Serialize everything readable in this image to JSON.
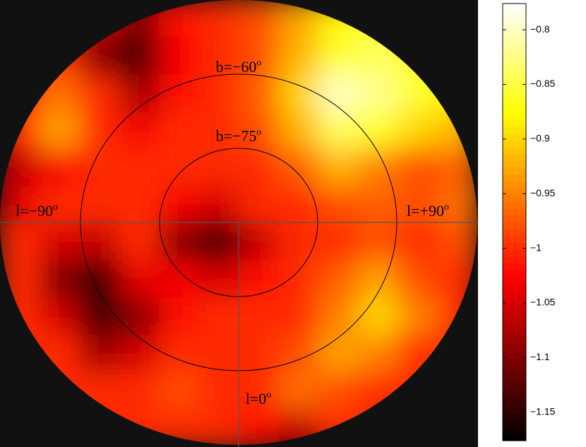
{
  "chart_data": {
    "type": "heatmap",
    "colormap": "hot",
    "values": [
      [
        -1.0,
        -1.0,
        -1.05,
        -1.1,
        -1.02,
        -1.0,
        -0.98,
        -0.93,
        -0.88,
        -0.86,
        -0.87,
        -0.88
      ],
      [
        -1.0,
        -1.0,
        -1.1,
        -1.14,
        -1.03,
        -1.0,
        -0.98,
        -0.92,
        -0.86,
        -0.84,
        -0.86,
        -0.88
      ],
      [
        -1.0,
        -0.96,
        -1.0,
        -1.08,
        -1.02,
        -1.0,
        -0.97,
        -0.9,
        -0.8,
        -0.82,
        -0.86,
        -0.88
      ],
      [
        -1.0,
        -0.93,
        -1.0,
        -1.03,
        -1.0,
        -1.0,
        -0.98,
        -0.92,
        -0.84,
        -0.86,
        -0.9,
        -0.92
      ],
      [
        -1.06,
        -1.03,
        -1.0,
        -1.0,
        -1.0,
        -1.0,
        -1.0,
        -0.97,
        -0.92,
        -0.95,
        -0.98,
        -0.97
      ],
      [
        -1.04,
        -1.0,
        -1.0,
        -1.0,
        -1.03,
        -1.05,
        -1.0,
        -1.0,
        -0.98,
        -0.97,
        -0.98,
        -0.96
      ],
      [
        -1.0,
        -1.05,
        -1.06,
        -1.0,
        -1.1,
        -1.16,
        -1.06,
        -1.0,
        -1.0,
        -0.98,
        -1.0,
        -0.98
      ],
      [
        -1.0,
        -1.1,
        -1.15,
        -1.04,
        -1.03,
        -1.05,
        -1.02,
        -1.0,
        -0.97,
        -0.93,
        -0.98,
        -1.0
      ],
      [
        -1.0,
        -1.05,
        -1.14,
        -1.1,
        -1.02,
        -1.0,
        -1.0,
        -1.0,
        -0.95,
        -0.9,
        -0.95,
        -1.0
      ],
      [
        -1.0,
        -1.0,
        -1.08,
        -1.05,
        -1.0,
        -1.0,
        -1.0,
        -0.98,
        -0.93,
        -0.95,
        -1.0,
        -1.0
      ],
      [
        -1.0,
        -1.0,
        -1.0,
        -1.0,
        -0.98,
        -1.0,
        -1.0,
        -0.96,
        -0.98,
        -1.0,
        -1.0,
        -1.0
      ],
      [
        -1.0,
        -1.0,
        -1.0,
        -1.0,
        -1.0,
        -1.0,
        -1.02,
        -1.06,
        -1.0,
        -1.0,
        -1.0,
        -1.0
      ]
    ],
    "clim": [
      -1.176,
      -0.776
    ],
    "cticks": [
      {
        "value": -0.8,
        "label": "−0.8"
      },
      {
        "value": -0.85,
        "label": "−0.85"
      },
      {
        "value": -0.9,
        "label": "−0.9"
      },
      {
        "value": -0.95,
        "label": "−0.95"
      },
      {
        "value": -1.0,
        "label": "−1"
      },
      {
        "value": -1.05,
        "label": "−1.05"
      },
      {
        "value": -1.1,
        "label": "−1.1"
      },
      {
        "value": -1.15,
        "label": "−1.15"
      }
    ],
    "annotations": [
      {
        "text": "b=−60",
        "sup": "o"
      },
      {
        "text": "b=−75",
        "sup": "o"
      },
      {
        "text": "l=−90",
        "sup": "o"
      },
      {
        "text": "l=+90",
        "sup": "o"
      },
      {
        "text": "l=0",
        "sup": "o"
      }
    ]
  }
}
